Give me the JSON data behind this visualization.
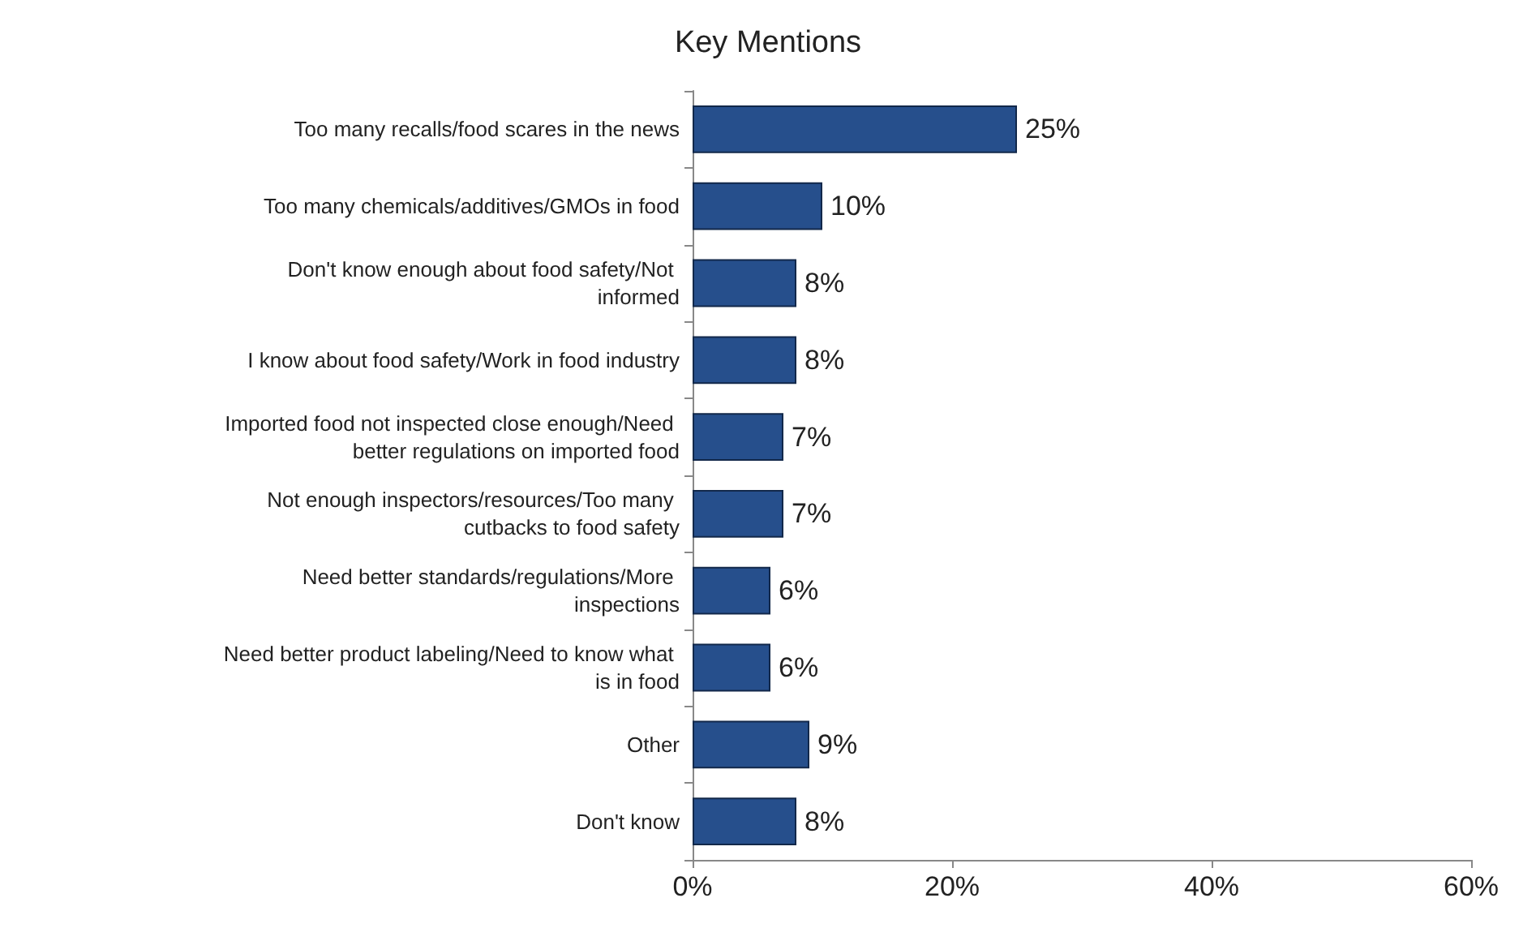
{
  "chart_data": {
    "type": "bar",
    "orientation": "horizontal",
    "title": "Key Mentions",
    "categories": [
      "Too many recalls/food scares in the news",
      "Too many chemicals/additives/GMOs in food",
      "Don't know enough about food safety/Not informed",
      "I know about food safety/Work in food industry",
      "Imported food not inspected close enough/Need better regulations on imported food",
      "Not enough inspectors/resources/Too many cutbacks to food safety",
      "Need better standards/regulations/More inspections",
      "Need better product labeling/Need to know what is in food",
      "Other",
      "Don't know"
    ],
    "values": [
      25,
      10,
      8,
      8,
      7,
      7,
      6,
      6,
      9,
      8
    ],
    "value_labels": [
      "25%",
      "10%",
      "8%",
      "8%",
      "7%",
      "7%",
      "6%",
      "6%",
      "9%",
      "8%"
    ],
    "color": "#264f8c",
    "xlim": [
      0,
      60
    ],
    "xticks": [
      {
        "value": 0,
        "label": "0%"
      },
      {
        "value": 20,
        "label": "20%"
      },
      {
        "value": 40,
        "label": "40%"
      },
      {
        "value": 60,
        "label": "60%"
      }
    ],
    "grid": false
  }
}
